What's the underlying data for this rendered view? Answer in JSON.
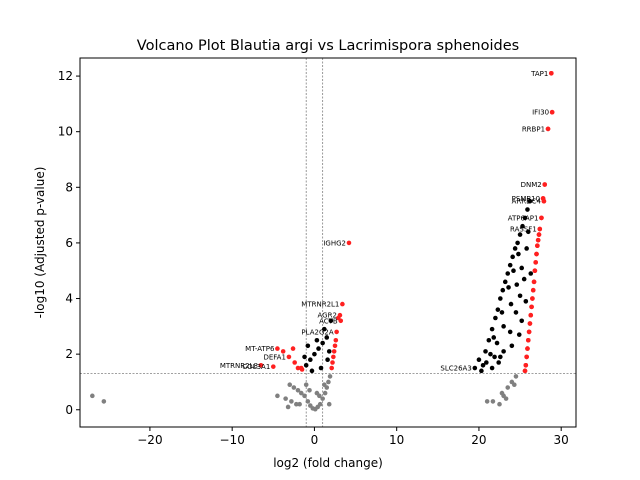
{
  "chart_data": {
    "type": "scatter",
    "title": "Volcano Plot Blautia argi vs Lacrimispora sphenoides",
    "xlabel": "log2 (fold change)",
    "ylabel": "-log10 (Adjusted p-value)",
    "xlim": [
      -28.5,
      31.8
    ],
    "ylim": [
      -0.62,
      12.65
    ],
    "xticks": [
      -20,
      -10,
      0,
      10,
      20,
      30
    ],
    "xtick_labels": [
      "−20",
      "−10",
      "0",
      "10",
      "20",
      "30"
    ],
    "yticks": [
      0,
      2,
      4,
      6,
      8,
      10,
      12
    ],
    "ytick_labels": [
      "0",
      "2",
      "4",
      "6",
      "8",
      "10",
      "12"
    ],
    "threshold_lines": {
      "vertical": [
        -1,
        1
      ],
      "horizontal": 1.3
    },
    "legend": "none",
    "colors": {
      "significant": "#ff2020",
      "not_significant": "#808080",
      "threshold": "#808080"
    },
    "series": [
      {
        "points": [
          [
            -27.0,
            0.5
          ],
          [
            -25.6,
            0.3
          ],
          [
            -3.0,
            0.9
          ],
          [
            -2.5,
            0.8
          ],
          [
            -2.0,
            0.7
          ],
          [
            -1.6,
            0.6
          ],
          [
            -1.2,
            0.5
          ],
          [
            -0.8,
            0.3
          ],
          [
            -0.5,
            0.15
          ],
          [
            -0.2,
            0.05
          ],
          [
            0.1,
            0.02
          ],
          [
            0.4,
            0.1
          ],
          [
            0.7,
            0.2
          ],
          [
            1.0,
            0.4
          ],
          [
            1.3,
            0.6
          ],
          [
            1.5,
            0.8
          ],
          [
            1.7,
            1.0
          ],
          [
            1.9,
            1.2
          ],
          [
            -3.5,
            0.4
          ],
          [
            -2.8,
            0.3
          ],
          [
            -1.8,
            0.2
          ],
          [
            -4.5,
            0.5
          ],
          [
            -1.0,
            0.9
          ],
          [
            0.6,
            0.5
          ],
          [
            1.2,
            0.9
          ],
          [
            -2.2,
            0.2
          ],
          [
            0.3,
            0.6
          ],
          [
            -0.6,
            0.7
          ],
          [
            1.8,
            0.2
          ],
          [
            -3.2,
            0.1
          ],
          [
            21.0,
            0.3
          ],
          [
            21.7,
            0.3
          ],
          [
            22.5,
            0.2
          ],
          [
            23.0,
            0.5
          ],
          [
            23.5,
            0.8
          ],
          [
            24.0,
            1.0
          ],
          [
            24.5,
            1.2
          ],
          [
            22.8,
            0.6
          ],
          [
            23.3,
            0.4
          ],
          [
            24.3,
            0.9
          ]
        ]
      },
      {
        "points": [
          [
            28.8,
            12.1
          ],
          [
            28.9,
            10.7
          ],
          [
            28.4,
            10.1
          ],
          [
            28.0,
            8.1
          ],
          [
            27.8,
            7.6
          ],
          [
            27.9,
            7.5
          ],
          [
            27.6,
            6.9
          ],
          [
            27.4,
            6.5
          ],
          [
            27.3,
            6.3
          ],
          [
            27.2,
            6.1
          ],
          [
            27.1,
            5.9
          ],
          [
            27.0,
            5.6
          ],
          [
            26.9,
            5.3
          ],
          [
            26.8,
            5.0
          ],
          [
            26.7,
            4.6
          ],
          [
            26.6,
            4.3
          ],
          [
            26.5,
            4.0
          ],
          [
            26.4,
            3.7
          ],
          [
            26.3,
            3.4
          ],
          [
            26.2,
            3.1
          ],
          [
            26.1,
            2.8
          ],
          [
            26.0,
            2.5
          ],
          [
            25.9,
            2.2
          ],
          [
            25.8,
            1.9
          ],
          [
            25.7,
            1.6
          ],
          [
            25.6,
            1.4
          ],
          [
            4.2,
            6.0
          ],
          [
            3.4,
            3.8
          ],
          [
            3.1,
            3.4
          ],
          [
            3.2,
            3.2
          ],
          [
            2.9,
            3.3
          ],
          [
            2.7,
            2.8
          ],
          [
            2.6,
            2.5
          ],
          [
            2.5,
            2.3
          ],
          [
            2.4,
            2.1
          ],
          [
            2.3,
            1.9
          ],
          [
            2.2,
            1.7
          ],
          [
            2.1,
            1.5
          ],
          [
            -4.5,
            2.2
          ],
          [
            -3.8,
            2.1
          ],
          [
            -3.1,
            1.9
          ],
          [
            -2.4,
            1.7
          ],
          [
            -1.6,
            1.5
          ],
          [
            -6.5,
            1.6
          ],
          [
            -5.0,
            1.55
          ],
          [
            -1.5,
            1.45
          ],
          [
            -2.0,
            1.5
          ],
          [
            -2.6,
            2.2
          ]
        ]
      },
      {
        "points": [
          [
            19.5,
            1.5
          ],
          [
            20.0,
            1.8
          ],
          [
            20.5,
            1.6
          ],
          [
            20.8,
            2.1
          ],
          [
            21.2,
            2.5
          ],
          [
            21.6,
            2.9
          ],
          [
            22.0,
            3.3
          ],
          [
            22.3,
            3.6
          ],
          [
            22.6,
            4.0
          ],
          [
            22.9,
            4.3
          ],
          [
            23.2,
            4.6
          ],
          [
            23.5,
            4.9
          ],
          [
            23.8,
            5.2
          ],
          [
            24.1,
            5.5
          ],
          [
            24.4,
            5.8
          ],
          [
            24.7,
            6.0
          ],
          [
            25.0,
            6.3
          ],
          [
            25.3,
            6.6
          ],
          [
            25.6,
            6.9
          ],
          [
            25.9,
            7.2
          ],
          [
            26.2,
            7.5
          ],
          [
            24.8,
            5.6
          ],
          [
            24.2,
            5.0
          ],
          [
            23.6,
            4.4
          ],
          [
            22.8,
            3.5
          ],
          [
            21.8,
            2.6
          ],
          [
            21.4,
            2.0
          ],
          [
            22.2,
            2.4
          ],
          [
            23.0,
            3.0
          ],
          [
            23.9,
            3.8
          ],
          [
            24.6,
            4.5
          ],
          [
            25.2,
            5.1
          ],
          [
            25.5,
            4.7
          ],
          [
            25.0,
            4.1
          ],
          [
            24.5,
            3.5
          ],
          [
            23.8,
            2.8
          ],
          [
            23.0,
            2.1
          ],
          [
            22.4,
            1.7
          ],
          [
            21.6,
            1.5
          ],
          [
            20.3,
            1.4
          ],
          [
            25.8,
            5.8
          ],
          [
            26.0,
            6.4
          ],
          [
            24.0,
            2.3
          ],
          [
            25.2,
            3.2
          ],
          [
            26.3,
            4.9
          ],
          [
            22.6,
            1.9
          ],
          [
            20.9,
            1.7
          ],
          [
            21.9,
            1.9
          ],
          [
            24.9,
            2.7
          ],
          [
            25.7,
            3.9
          ],
          [
            -1.0,
            1.6
          ],
          [
            -0.5,
            1.8
          ],
          [
            0.0,
            2.0
          ],
          [
            0.5,
            2.2
          ],
          [
            1.0,
            2.4
          ],
          [
            1.5,
            2.6
          ],
          [
            -0.3,
            1.4
          ],
          [
            0.8,
            1.5
          ],
          [
            1.6,
            1.8
          ],
          [
            -1.2,
            1.9
          ],
          [
            0.3,
            2.5
          ],
          [
            1.2,
            2.9
          ],
          [
            2.0,
            3.2
          ],
          [
            -0.8,
            2.3
          ],
          [
            1.8,
            2.1
          ]
        ]
      }
    ],
    "annotations": [
      {
        "text": "TAP1",
        "x": 28.8,
        "y": 12.1
      },
      {
        "text": "IFI30",
        "x": 28.9,
        "y": 10.7
      },
      {
        "text": "RRBP1",
        "x": 28.4,
        "y": 10.1
      },
      {
        "text": "DNM2",
        "x": 28.0,
        "y": 8.1
      },
      {
        "text": "PSMB10",
        "x": 27.8,
        "y": 7.6
      },
      {
        "text": "ARRDC4",
        "x": 27.9,
        "y": 7.5
      },
      {
        "text": "ATP6AP1",
        "x": 27.6,
        "y": 6.9
      },
      {
        "text": "RASSF1",
        "x": 27.4,
        "y": 6.5
      },
      {
        "text": "IGHG2",
        "x": 4.2,
        "y": 6.0
      },
      {
        "text": "MTRNR2L1",
        "x": 3.4,
        "y": 3.8
      },
      {
        "text": "AGR2",
        "x": 3.1,
        "y": 3.4
      },
      {
        "text": "ACTB",
        "x": 3.2,
        "y": 3.2
      },
      {
        "text": "PLA2G2A",
        "x": 2.7,
        "y": 2.8
      },
      {
        "text": "DEFA1",
        "x": -3.1,
        "y": 1.9
      },
      {
        "text": "MT-ATP6",
        "x": -4.5,
        "y": 2.2
      },
      {
        "text": "COL3A1",
        "x": -5.0,
        "y": 1.55
      },
      {
        "text": "MTRNR2L8",
        "x": -6.5,
        "y": 1.6
      },
      {
        "text": "SLC26A3",
        "x": 19.5,
        "y": 1.5
      }
    ]
  }
}
